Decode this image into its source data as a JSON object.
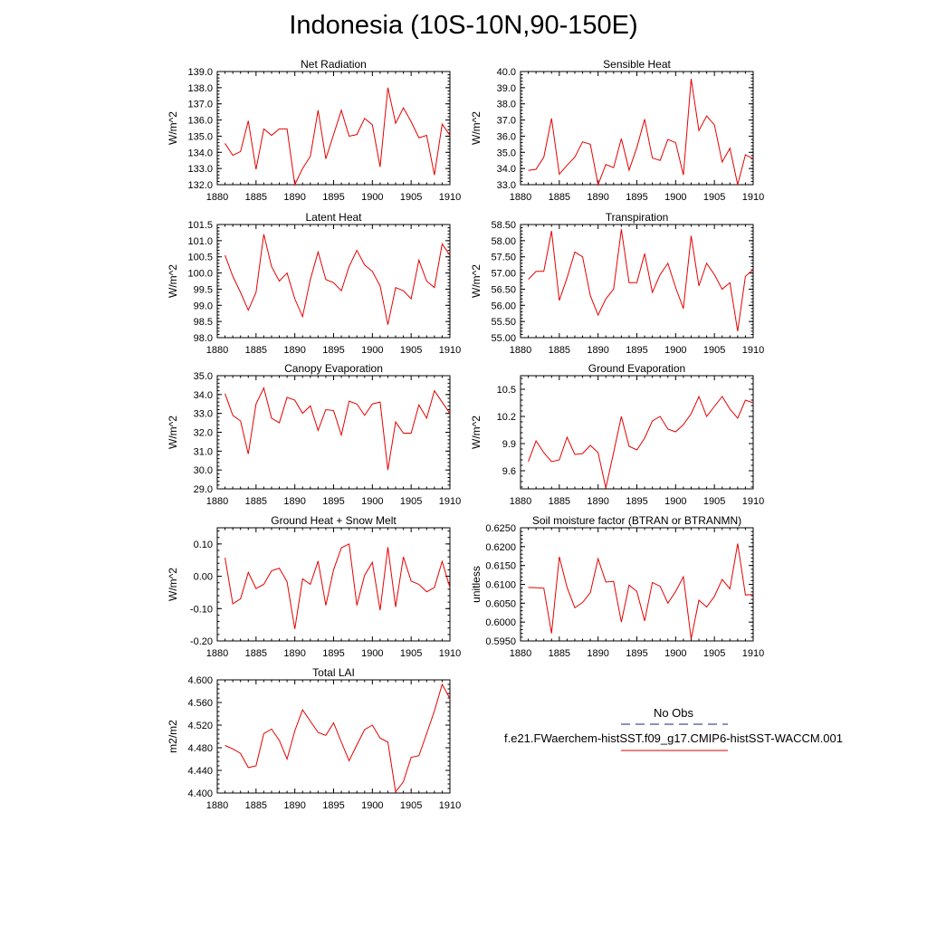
{
  "title": "Indonesia (10S-10N,90-150E)",
  "colors": {
    "model_line": "#e60000",
    "obs_line": "#1a237e",
    "axis": "#000000"
  },
  "legend": {
    "obs_label": "No Obs",
    "model_label": "f.e21.FWaerchem-histSST.f09_g17.CMIP6-histSST-WACCM.001"
  },
  "chart_data": [
    {
      "type": "line",
      "title": "Net Radiation",
      "ylabel": "W/m^2",
      "xlim": [
        1880,
        1910
      ],
      "ylim": [
        132.0,
        139.0
      ],
      "xticks": [
        1880,
        1885,
        1890,
        1895,
        1900,
        1905,
        1910
      ],
      "xtick_labels": [
        "1880",
        "1885",
        "1890",
        "1895",
        "1900",
        "1905",
        "1910"
      ],
      "yticks": [
        132.0,
        133.0,
        134.0,
        135.0,
        136.0,
        137.0,
        138.0,
        139.0
      ],
      "ytick_labels": [
        "132.0",
        "133.0",
        "134.0",
        "135.0",
        "136.0",
        "137.0",
        "138.0",
        "139.0"
      ],
      "x": [
        1881,
        1882,
        1883,
        1884,
        1885,
        1886,
        1887,
        1888,
        1889,
        1890,
        1891,
        1892,
        1893,
        1894,
        1895,
        1896,
        1897,
        1898,
        1899,
        1900,
        1901,
        1902,
        1903,
        1904,
        1905,
        1906,
        1907,
        1908,
        1909,
        1910
      ],
      "values": [
        134.55,
        133.82,
        134.05,
        135.95,
        132.95,
        135.45,
        135.05,
        135.45,
        135.45,
        132.0,
        133.0,
        133.75,
        136.6,
        133.6,
        135.1,
        136.6,
        135.0,
        135.1,
        136.1,
        135.7,
        133.1,
        138.0,
        135.8,
        136.75,
        135.9,
        134.9,
        135.05,
        132.6,
        135.75,
        135.05
      ]
    },
    {
      "type": "line",
      "title": "Sensible Heat",
      "ylabel": "W/m^2",
      "xlim": [
        1880,
        1910
      ],
      "ylim": [
        33.0,
        40.0
      ],
      "xticks": [
        1880,
        1885,
        1890,
        1895,
        1900,
        1905,
        1910
      ],
      "xtick_labels": [
        "1880",
        "1885",
        "1890",
        "1895",
        "1900",
        "1905",
        "1910"
      ],
      "yticks": [
        33.0,
        34.0,
        35.0,
        36.0,
        37.0,
        38.0,
        39.0,
        40.0
      ],
      "ytick_labels": [
        "33.0",
        "34.0",
        "35.0",
        "36.0",
        "37.0",
        "38.0",
        "39.0",
        "40.0"
      ],
      "x": [
        1881,
        1882,
        1883,
        1884,
        1885,
        1886,
        1887,
        1888,
        1889,
        1890,
        1891,
        1892,
        1893,
        1894,
        1895,
        1896,
        1897,
        1898,
        1899,
        1900,
        1901,
        1902,
        1903,
        1904,
        1905,
        1906,
        1907,
        1908,
        1909,
        1910
      ],
      "values": [
        33.88,
        33.95,
        34.7,
        37.1,
        33.65,
        34.2,
        34.7,
        35.65,
        35.5,
        33.0,
        34.25,
        34.05,
        35.85,
        33.9,
        35.3,
        37.05,
        34.65,
        34.5,
        35.8,
        35.6,
        33.6,
        39.55,
        36.35,
        37.25,
        36.7,
        34.4,
        35.25,
        33.0,
        34.85,
        34.6
      ]
    },
    {
      "type": "line",
      "title": "Latent Heat",
      "ylabel": "W/m^2",
      "xlim": [
        1880,
        1910
      ],
      "ylim": [
        98.0,
        101.5
      ],
      "xticks": [
        1880,
        1885,
        1890,
        1895,
        1900,
        1905,
        1910
      ],
      "xtick_labels": [
        "1880",
        "1885",
        "1890",
        "1895",
        "1900",
        "1905",
        "1910"
      ],
      "yticks": [
        98.0,
        98.5,
        99.0,
        99.5,
        100.0,
        100.5,
        101.0,
        101.5
      ],
      "ytick_labels": [
        "98.0",
        "98.5",
        "99.0",
        "99.5",
        "100.0",
        "100.5",
        "101.0",
        "101.5"
      ],
      "x": [
        1881,
        1882,
        1883,
        1884,
        1885,
        1886,
        1887,
        1888,
        1889,
        1890,
        1891,
        1892,
        1893,
        1894,
        1895,
        1896,
        1897,
        1898,
        1899,
        1900,
        1901,
        1902,
        1903,
        1904,
        1905,
        1906,
        1907,
        1908,
        1909,
        1910
      ],
      "values": [
        100.55,
        99.9,
        99.4,
        98.85,
        99.4,
        101.2,
        100.2,
        99.75,
        100.0,
        99.2,
        98.65,
        99.8,
        100.65,
        99.8,
        99.7,
        99.45,
        100.2,
        100.7,
        100.25,
        100.05,
        99.6,
        98.4,
        99.55,
        99.45,
        99.2,
        100.4,
        99.75,
        99.55,
        100.9,
        100.55
      ]
    },
    {
      "type": "line",
      "title": "Transpiration",
      "ylabel": "W/m^2",
      "xlim": [
        1880,
        1910
      ],
      "ylim": [
        55.0,
        58.5
      ],
      "xticks": [
        1880,
        1885,
        1890,
        1895,
        1900,
        1905,
        1910
      ],
      "xtick_labels": [
        "1880",
        "1885",
        "1890",
        "1895",
        "1900",
        "1905",
        "1910"
      ],
      "yticks": [
        55.0,
        55.5,
        56.0,
        56.5,
        57.0,
        57.5,
        58.0,
        58.5
      ],
      "ytick_labels": [
        "55.00",
        "55.50",
        "56.00",
        "56.50",
        "57.00",
        "57.50",
        "58.00",
        "58.50"
      ],
      "x": [
        1881,
        1882,
        1883,
        1884,
        1885,
        1886,
        1887,
        1888,
        1889,
        1890,
        1891,
        1892,
        1893,
        1894,
        1895,
        1896,
        1897,
        1898,
        1899,
        1900,
        1901,
        1902,
        1903,
        1904,
        1905,
        1906,
        1907,
        1908,
        1909,
        1910
      ],
      "values": [
        56.8,
        57.05,
        57.05,
        58.3,
        56.15,
        56.85,
        57.65,
        57.5,
        56.3,
        55.7,
        56.2,
        56.5,
        58.35,
        56.7,
        56.7,
        57.6,
        56.4,
        56.95,
        57.3,
        56.55,
        55.9,
        58.15,
        56.6,
        57.3,
        56.95,
        56.5,
        56.7,
        55.2,
        56.9,
        57.1
      ]
    },
    {
      "type": "line",
      "title": "Canopy Evaporation",
      "ylabel": "W/m^2",
      "xlim": [
        1880,
        1910
      ],
      "ylim": [
        29.0,
        35.0
      ],
      "xticks": [
        1880,
        1885,
        1890,
        1895,
        1900,
        1905,
        1910
      ],
      "xtick_labels": [
        "1880",
        "1885",
        "1890",
        "1895",
        "1900",
        "1905",
        "1910"
      ],
      "yticks": [
        29.0,
        30.0,
        31.0,
        32.0,
        33.0,
        34.0,
        35.0
      ],
      "ytick_labels": [
        "29.0",
        "30.0",
        "31.0",
        "32.0",
        "33.0",
        "34.0",
        "35.0"
      ],
      "x": [
        1881,
        1882,
        1883,
        1884,
        1885,
        1886,
        1887,
        1888,
        1889,
        1890,
        1891,
        1892,
        1893,
        1894,
        1895,
        1896,
        1897,
        1898,
        1899,
        1900,
        1901,
        1902,
        1903,
        1904,
        1905,
        1906,
        1907,
        1908,
        1909,
        1910
      ],
      "values": [
        34.05,
        32.9,
        32.6,
        30.85,
        33.5,
        34.35,
        32.75,
        32.5,
        33.85,
        33.7,
        33.0,
        33.4,
        32.1,
        33.2,
        33.15,
        31.85,
        33.65,
        33.5,
        32.9,
        33.5,
        33.6,
        30.0,
        32.55,
        31.95,
        31.95,
        33.45,
        32.75,
        34.2,
        33.6,
        33.0
      ]
    },
    {
      "type": "line",
      "title": "Ground Evaporation",
      "ylabel": "W/m^2",
      "xlim": [
        1880,
        1910
      ],
      "ylim": [
        9.4,
        10.65
      ],
      "xticks": [
        1880,
        1885,
        1890,
        1895,
        1900,
        1905,
        1910
      ],
      "xtick_labels": [
        "1880",
        "1885",
        "1890",
        "1895",
        "1900",
        "1905",
        "1910"
      ],
      "yticks": [
        9.6,
        9.9,
        10.2,
        10.5
      ],
      "ytick_labels": [
        "9.6",
        "9.9",
        "10.2",
        "10.5"
      ],
      "x": [
        1881,
        1882,
        1883,
        1884,
        1885,
        1886,
        1887,
        1888,
        1889,
        1890,
        1891,
        1892,
        1893,
        1894,
        1895,
        1896,
        1897,
        1898,
        1899,
        1900,
        1901,
        1902,
        1903,
        1904,
        1905,
        1906,
        1907,
        1908,
        1909,
        1910
      ],
      "values": [
        9.7,
        9.93,
        9.8,
        9.7,
        9.72,
        9.97,
        9.78,
        9.79,
        9.88,
        9.8,
        9.41,
        9.8,
        10.2,
        9.87,
        9.83,
        9.96,
        10.15,
        10.2,
        10.06,
        10.03,
        10.11,
        10.23,
        10.42,
        10.2,
        10.31,
        10.42,
        10.28,
        10.18,
        10.38,
        10.35
      ]
    },
    {
      "type": "line",
      "title": "Ground Heat + Snow Melt",
      "ylabel": "W/m^2",
      "xlim": [
        1880,
        1910
      ],
      "ylim": [
        -0.2,
        0.15
      ],
      "xticks": [
        1880,
        1885,
        1890,
        1895,
        1900,
        1905,
        1910
      ],
      "xtick_labels": [
        "1880",
        "1885",
        "1890",
        "1895",
        "1900",
        "1905",
        "1910"
      ],
      "yticks": [
        -0.2,
        -0.1,
        0.0,
        0.1
      ],
      "ytick_labels": [
        "-0.20",
        "-0.10",
        "0.00",
        "0.10"
      ],
      "x": [
        1881,
        1882,
        1883,
        1884,
        1885,
        1886,
        1887,
        1888,
        1889,
        1890,
        1891,
        1892,
        1893,
        1894,
        1895,
        1896,
        1897,
        1898,
        1899,
        1900,
        1901,
        1902,
        1903,
        1904,
        1905,
        1906,
        1907,
        1908,
        1909,
        1910
      ],
      "values": [
        0.057,
        -0.085,
        -0.07,
        0.012,
        -0.038,
        -0.025,
        0.017,
        0.025,
        -0.017,
        -0.163,
        -0.008,
        -0.025,
        0.047,
        -0.09,
        0.02,
        0.088,
        0.1,
        -0.09,
        0.003,
        0.043,
        -0.105,
        0.09,
        -0.095,
        0.06,
        -0.015,
        -0.025,
        -0.048,
        -0.035,
        0.046,
        -0.035
      ]
    },
    {
      "type": "line",
      "title": "Soil moisture factor (BTRAN or BTRANMN)",
      "ylabel": "unitless",
      "xlim": [
        1880,
        1910
      ],
      "ylim": [
        0.595,
        0.625
      ],
      "xticks": [
        1880,
        1885,
        1890,
        1895,
        1900,
        1905,
        1910
      ],
      "xtick_labels": [
        "1880",
        "1885",
        "1890",
        "1895",
        "1900",
        "1905",
        "1910"
      ],
      "yticks": [
        0.595,
        0.6,
        0.605,
        0.61,
        0.615,
        0.62,
        0.625
      ],
      "ytick_labels": [
        "0.5950",
        "0.6000",
        "0.6050",
        "0.6100",
        "0.6150",
        "0.6200",
        "0.6250"
      ],
      "x": [
        1881,
        1882,
        1883,
        1884,
        1885,
        1886,
        1887,
        1888,
        1889,
        1890,
        1891,
        1892,
        1893,
        1894,
        1895,
        1896,
        1897,
        1898,
        1899,
        1900,
        1901,
        1902,
        1903,
        1904,
        1905,
        1906,
        1907,
        1908,
        1909,
        1910
      ],
      "values": [
        0.6092,
        0.6091,
        0.609,
        0.597,
        0.6173,
        0.6092,
        0.6038,
        0.6052,
        0.6078,
        0.6168,
        0.6106,
        0.6108,
        0.6,
        0.6098,
        0.6081,
        0.6003,
        0.6105,
        0.6095,
        0.605,
        0.6081,
        0.612,
        0.5955,
        0.6058,
        0.604,
        0.6068,
        0.6113,
        0.6088,
        0.6208,
        0.6072,
        0.6073
      ]
    },
    {
      "type": "line",
      "title": "Total LAI",
      "ylabel": "m2/m2",
      "xlim": [
        1880,
        1910
      ],
      "ylim": [
        4.4,
        4.6
      ],
      "xticks": [
        1880,
        1885,
        1890,
        1895,
        1900,
        1905,
        1910
      ],
      "xtick_labels": [
        "1880",
        "1885",
        "1890",
        "1895",
        "1900",
        "1905",
        "1910"
      ],
      "yticks": [
        4.4,
        4.44,
        4.48,
        4.52,
        4.56,
        4.6
      ],
      "ytick_labels": [
        "4.400",
        "4.440",
        "4.480",
        "4.520",
        "4.560",
        "4.600"
      ],
      "x": [
        1881,
        1882,
        1883,
        1884,
        1885,
        1886,
        1887,
        1888,
        1889,
        1890,
        1891,
        1892,
        1893,
        1894,
        1895,
        1896,
        1897,
        1898,
        1899,
        1900,
        1901,
        1902,
        1903,
        1904,
        1905,
        1906,
        1907,
        1908,
        1909,
        1910
      ],
      "values": [
        4.484,
        4.478,
        4.47,
        4.445,
        4.448,
        4.505,
        4.513,
        4.493,
        4.46,
        4.51,
        4.547,
        4.527,
        4.507,
        4.502,
        4.524,
        4.49,
        4.457,
        4.485,
        4.512,
        4.52,
        4.497,
        4.49,
        4.402,
        4.42,
        4.463,
        4.466,
        4.505,
        4.545,
        4.592,
        4.567
      ]
    }
  ]
}
